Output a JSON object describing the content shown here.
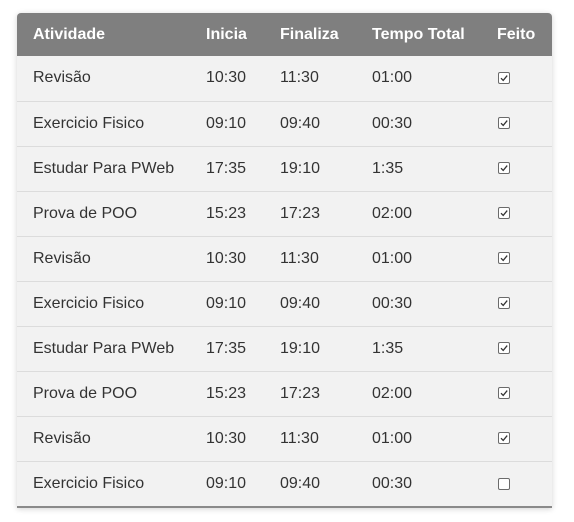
{
  "table": {
    "headers": [
      "Atividade",
      "Inicia",
      "Finaliza",
      "Tempo Total",
      "Feito"
    ],
    "rows": [
      {
        "atividade": "Revisão",
        "inicia": "10:30",
        "finaliza": "11:30",
        "tempo": "01:00",
        "feito": true
      },
      {
        "atividade": "Exercicio Fisico",
        "inicia": "09:10",
        "finaliza": "09:40",
        "tempo": "00:30",
        "feito": true
      },
      {
        "atividade": "Estudar Para PWeb",
        "inicia": "17:35",
        "finaliza": "19:10",
        "tempo": "1:35",
        "feito": true
      },
      {
        "atividade": "Prova de POO",
        "inicia": "15:23",
        "finaliza": "17:23",
        "tempo": "02:00",
        "feito": true
      },
      {
        "atividade": "Revisão",
        "inicia": "10:30",
        "finaliza": "11:30",
        "tempo": "01:00",
        "feito": true
      },
      {
        "atividade": "Exercicio Fisico",
        "inicia": "09:10",
        "finaliza": "09:40",
        "tempo": "00:30",
        "feito": true
      },
      {
        "atividade": "Estudar Para PWeb",
        "inicia": "17:35",
        "finaliza": "19:10",
        "tempo": "1:35",
        "feito": true
      },
      {
        "atividade": "Prova de POO",
        "inicia": "15:23",
        "finaliza": "17:23",
        "tempo": "02:00",
        "feito": true
      },
      {
        "atividade": "Revisão",
        "inicia": "10:30",
        "finaliza": "11:30",
        "tempo": "01:00",
        "feito": true
      },
      {
        "atividade": "Exercicio Fisico",
        "inicia": "09:10",
        "finaliza": "09:40",
        "tempo": "00:30",
        "feito": false
      }
    ]
  },
  "colors": {
    "header_bg": "#7f7f7f",
    "header_text": "#ffffff",
    "row_bg": "#f2f2f2",
    "row_divider": "#dcdcdc",
    "text": "#333333"
  }
}
